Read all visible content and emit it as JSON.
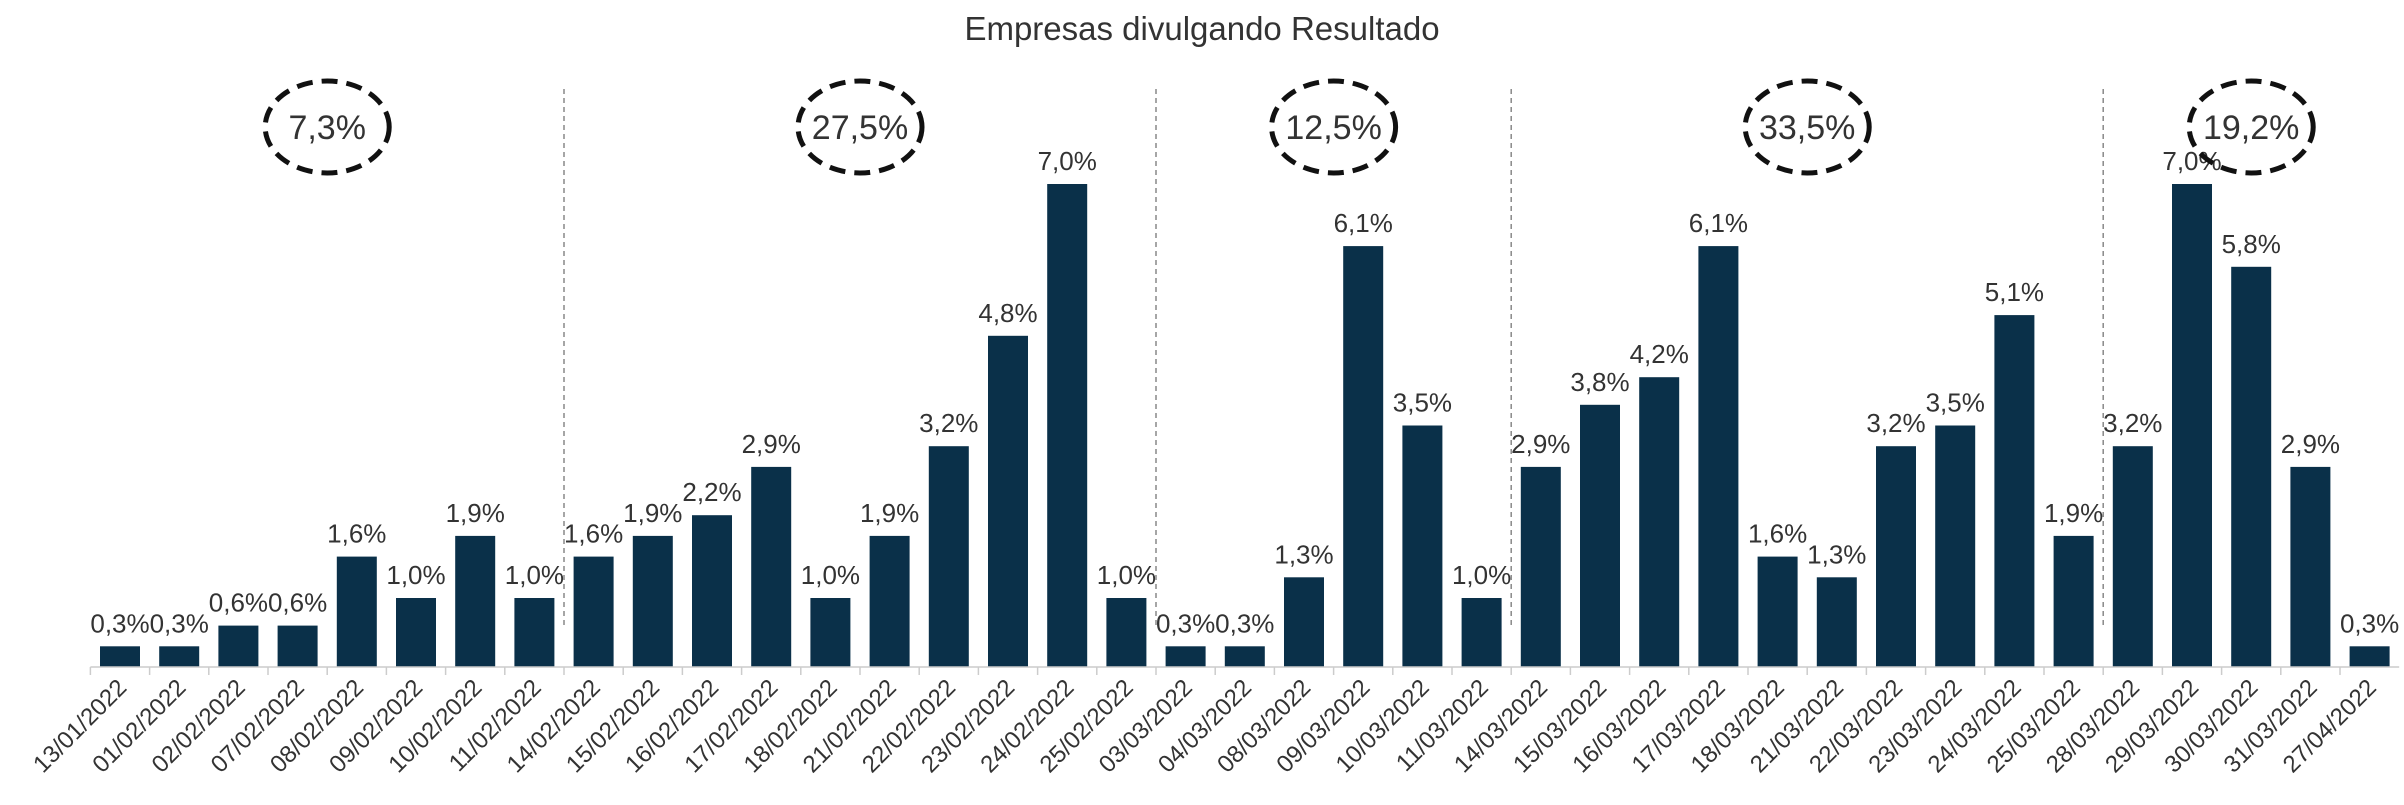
{
  "chart_data": {
    "type": "bar",
    "title": "Empresas divulgando Resultado",
    "color": "#0a3049",
    "categories": [
      "13/01/2022",
      "01/02/2022",
      "02/02/2022",
      "07/02/2022",
      "08/02/2022",
      "09/02/2022",
      "10/02/2022",
      "11/02/2022",
      "14/02/2022",
      "15/02/2022",
      "16/02/2022",
      "17/02/2022",
      "18/02/2022",
      "21/02/2022",
      "22/02/2022",
      "23/02/2022",
      "24/02/2022",
      "25/02/2022",
      "03/03/2022",
      "04/03/2022",
      "08/03/2022",
      "09/03/2022",
      "10/03/2022",
      "11/03/2022",
      "14/03/2022",
      "15/03/2022",
      "16/03/2022",
      "17/03/2022",
      "18/03/2022",
      "21/03/2022",
      "22/03/2022",
      "23/03/2022",
      "24/03/2022",
      "25/03/2022",
      "28/03/2022",
      "29/03/2022",
      "30/03/2022",
      "31/03/2022",
      "27/04/2022"
    ],
    "values": [
      0.3,
      0.3,
      0.6,
      0.6,
      1.6,
      1.0,
      1.9,
      1.0,
      1.6,
      1.9,
      2.2,
      2.9,
      1.0,
      1.9,
      3.2,
      4.8,
      7.0,
      1.0,
      0.3,
      0.3,
      1.3,
      6.1,
      3.5,
      1.0,
      2.9,
      3.8,
      4.2,
      6.1,
      1.6,
      1.3,
      3.2,
      3.5,
      5.1,
      1.9,
      3.2,
      7.0,
      5.8,
      2.9,
      0.3
    ],
    "value_labels": [
      "0,3%",
      "0,3%",
      "0,6%",
      "0,6%",
      "1,6%",
      "1,0%",
      "1,9%",
      "1,0%",
      "1,6%",
      "1,9%",
      "2,2%",
      "2,9%",
      "1,0%",
      "1,9%",
      "3,2%",
      "4,8%",
      "7,0%",
      "1,0%",
      "0,3%",
      "0,3%",
      "1,3%",
      "6,1%",
      "3,5%",
      "1,0%",
      "2,9%",
      "3,8%",
      "4,2%",
      "6,1%",
      "1,6%",
      "1,3%",
      "3,2%",
      "3,5%",
      "5,1%",
      "1,9%",
      "3,2%",
      "7,0%",
      "5,8%",
      "2,9%",
      "0,3%"
    ],
    "groups": [
      {
        "value": 7.3,
        "label": "7,3%",
        "bars": 8
      },
      {
        "value": 27.5,
        "label": "27,5%",
        "bars": 10
      },
      {
        "value": 12.5,
        "label": "12,5%",
        "bars": 6
      },
      {
        "value": 33.5,
        "label": "33,5%",
        "bars": 10
      },
      {
        "value": 19.2,
        "label": "19,2%",
        "bars": 5
      }
    ]
  }
}
